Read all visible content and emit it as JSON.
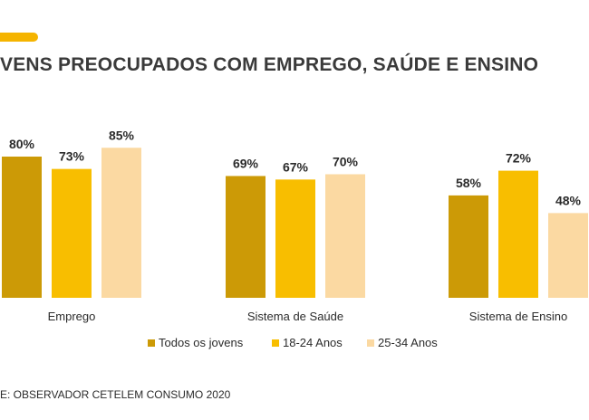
{
  "header": {
    "title": "VENS PREOCUPADOS COM EMPREGO, SAÚDE E ENSINO"
  },
  "colors": {
    "accent": "#F5B400",
    "series": [
      "#CC9A06",
      "#F8BE00",
      "#FBD9A2"
    ]
  },
  "chart_data": {
    "type": "bar",
    "title": "VENS PREOCUPADOS COM EMPREGO, SAÚDE E ENSINO",
    "categories": [
      "Emprego",
      "Sistema de Saúde",
      "Sistema de Ensino"
    ],
    "series": [
      {
        "name": "Todos os jovens",
        "values": [
          80,
          69,
          58
        ]
      },
      {
        "name": "18-24 Anos",
        "values": [
          73,
          67,
          72
        ]
      },
      {
        "name": "25-34 Anos",
        "values": [
          85,
          70,
          48
        ]
      }
    ],
    "value_suffix": "%",
    "ylim": [
      0,
      100
    ],
    "grid": false,
    "legend_position": "bottom"
  },
  "footer": {
    "source": "E: OBSERVADOR CETELEM CONSUMO 2020"
  }
}
